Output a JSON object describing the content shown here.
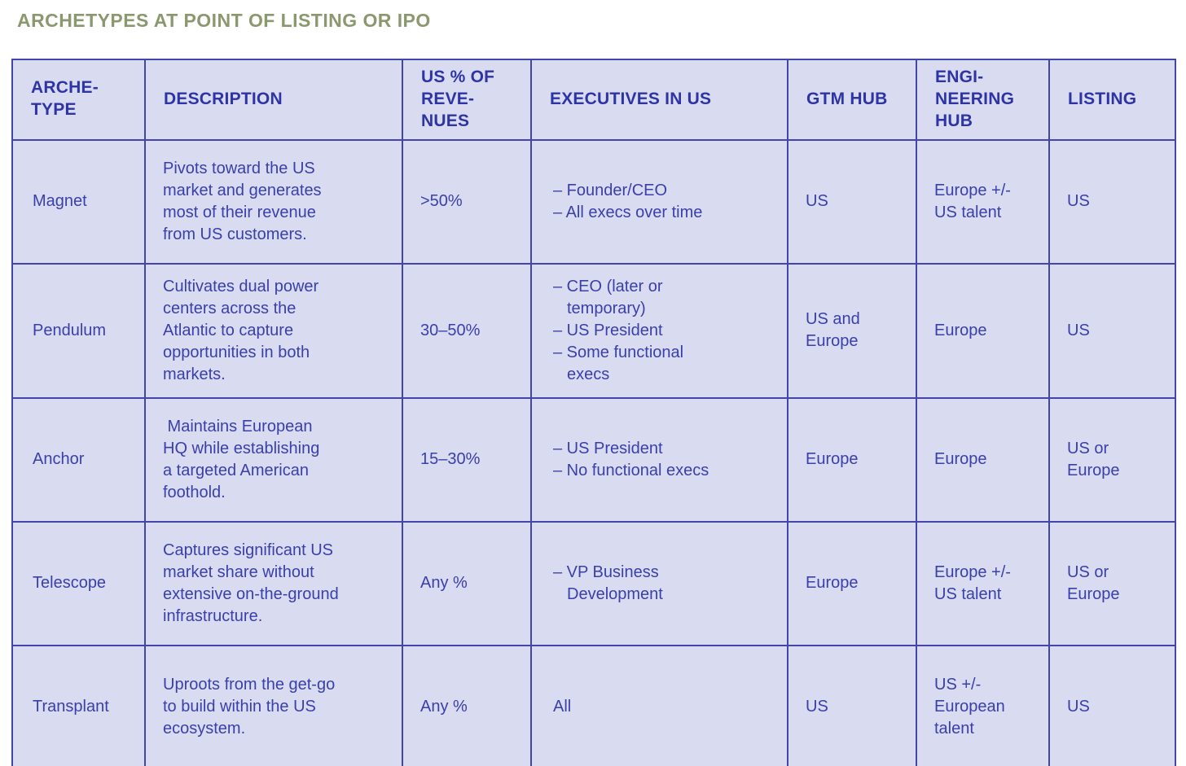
{
  "title": "ARCHETYPES AT POINT OF LISTING OR IPO",
  "colors": {
    "title_text": "#8a996d",
    "table_border": "#4246a8",
    "cell_background": "#d9dbf1",
    "header_text": "#2e34a4",
    "body_text": "#3a40aa",
    "page_background": "#ffffff"
  },
  "table": {
    "columns": [
      "ARCHE-\nTYPE",
      "DESCRIPTION",
      "US % OF\nREVE-\nNUES",
      "EXECUTIVES IN US",
      "GTM HUB",
      "ENGI-\nNEERING\nHUB",
      "LISTING"
    ],
    "rows": [
      {
        "archetype": "Magnet",
        "description": "Pivots toward the US\nmarket and generates\nmost of their revenue\nfrom US customers.",
        "revenues": ">50%",
        "executives": [
          "– Founder/CEO",
          "– All execs over time"
        ],
        "gtm_hub": "US",
        "engineering_hub": "Europe +/-\nUS talent",
        "listing": "US"
      },
      {
        "archetype": "Pendulum",
        "description": "Cultivates dual power\ncenters across the\nAtlantic to capture\nopportunities in both\nmarkets.",
        "revenues": "30–50%",
        "executives": [
          "– CEO (later or\ntemporary)",
          "– US President",
          "– Some functional\nexecs"
        ],
        "gtm_hub": "US and\nEurope",
        "engineering_hub": "Europe",
        "listing": "US"
      },
      {
        "archetype": "Anchor",
        "description": " Maintains European\nHQ while establishing\na targeted American\nfoothold.",
        "revenues": "15–30%",
        "executives": [
          "– US President",
          "– No functional execs"
        ],
        "gtm_hub": "Europe",
        "engineering_hub": "Europe",
        "listing": "US or\nEurope"
      },
      {
        "archetype": "Telescope",
        "description": "Captures significant US\nmarket share without\nextensive on-the-ground\ninfrastructure.",
        "revenues": "Any %",
        "executives": [
          "– VP Business\nDevelopment"
        ],
        "gtm_hub": "Europe",
        "engineering_hub": "Europe +/-\nUS talent",
        "listing": "US or\nEurope"
      },
      {
        "archetype": "Transplant",
        "description": "Uproots from the get-go\nto build within the US\necosystem.",
        "revenues": "Any %",
        "executives": [
          "All"
        ],
        "gtm_hub": "US",
        "engineering_hub": "US +/-\nEuropean\ntalent",
        "listing": "US"
      }
    ]
  }
}
